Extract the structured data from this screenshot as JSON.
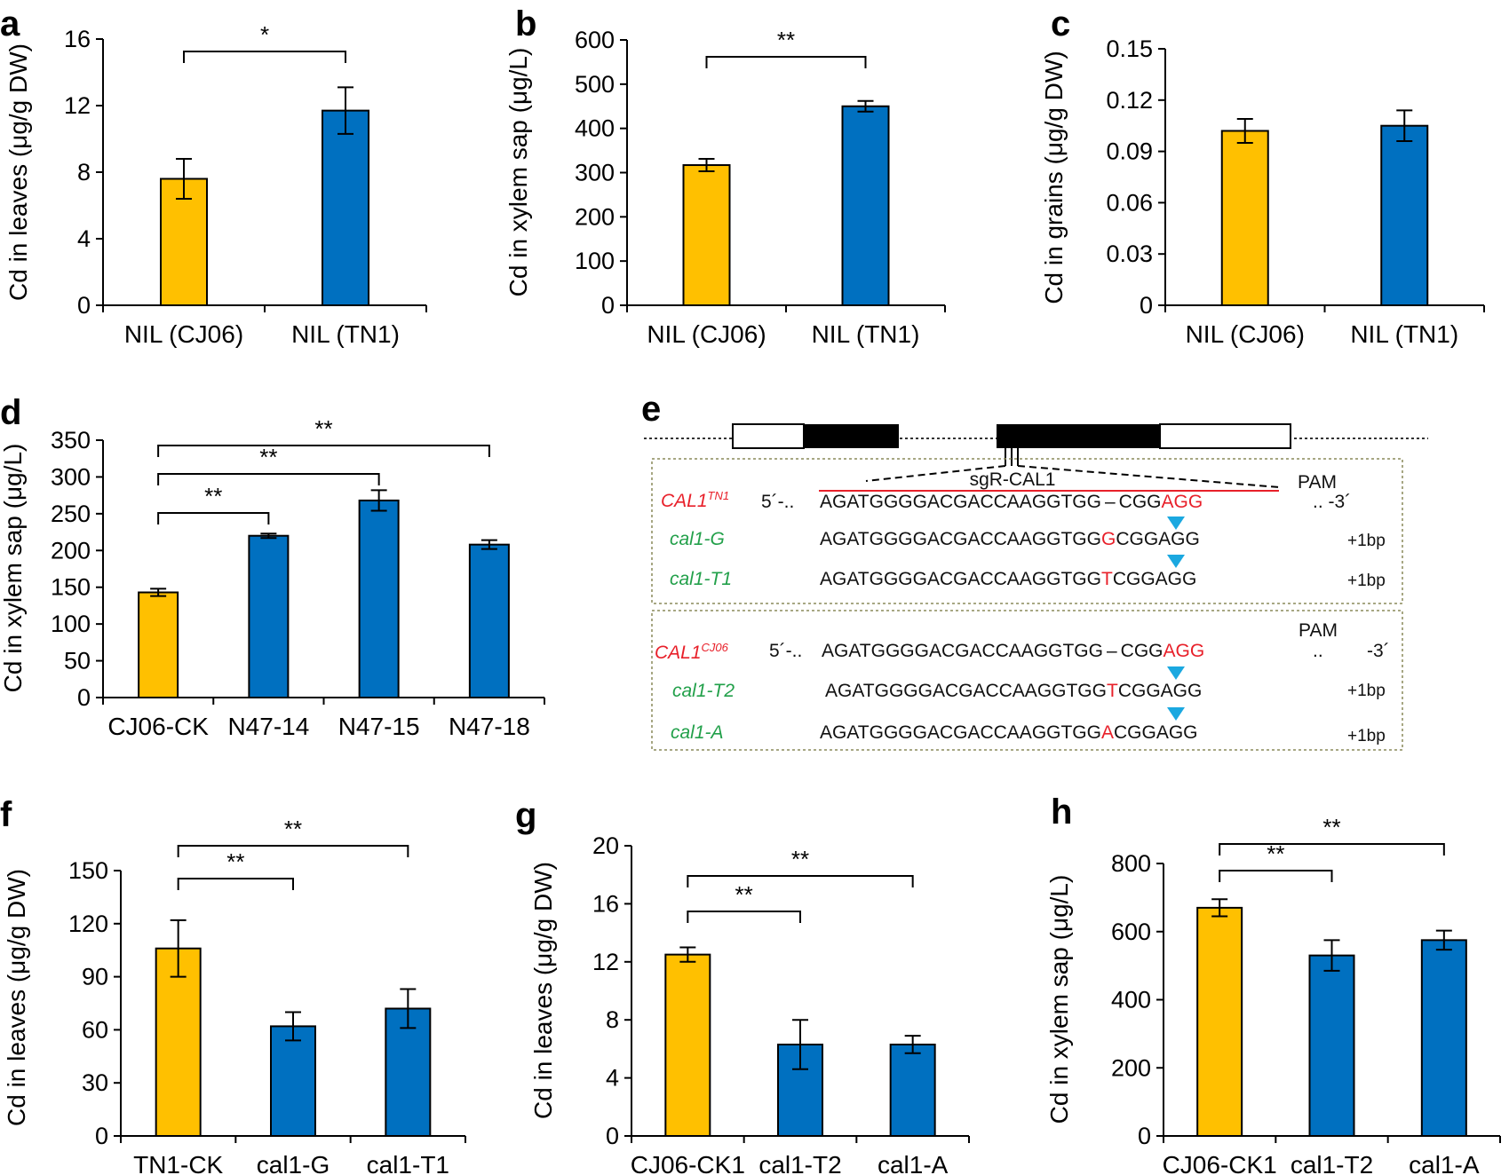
{
  "colors": {
    "yellow": "#ffc000",
    "blue": "#0070c0",
    "red": "#e8202a",
    "green": "#22a04a",
    "cyan": "#1ba8e0"
  },
  "chart_data": [
    {
      "id": "a",
      "panel": "a",
      "type": "bar",
      "categories": [
        "NIL (CJ06)",
        "NIL (TN1)"
      ],
      "values": [
        7.6,
        11.7
      ],
      "errors": [
        1.2,
        1.4
      ],
      "colors": [
        "yellow",
        "blue"
      ],
      "ylabel": "Cd in leaves (μg/g DW)",
      "ylim": [
        0,
        16
      ],
      "yticks": [
        "0",
        "4",
        "8",
        "12",
        "16"
      ],
      "significance": [
        {
          "from": 0,
          "to": 1,
          "label": "*"
        }
      ]
    },
    {
      "id": "b",
      "panel": "b",
      "type": "bar",
      "categories": [
        "NIL (CJ06)",
        "NIL (TN1)"
      ],
      "values": [
        317,
        450
      ],
      "errors": [
        14,
        12
      ],
      "colors": [
        "yellow",
        "blue"
      ],
      "ylabel": "Cd in xylem sap (μg/L)",
      "ylim": [
        0,
        600
      ],
      "yticks": [
        "0",
        "100",
        "200",
        "300",
        "400",
        "500",
        "600"
      ],
      "significance": [
        {
          "from": 0,
          "to": 1,
          "label": "**"
        }
      ]
    },
    {
      "id": "c",
      "panel": "c",
      "type": "bar",
      "categories": [
        "NIL (CJ06)",
        "NIL (TN1)"
      ],
      "values": [
        0.102,
        0.105
      ],
      "errors": [
        0.007,
        0.009
      ],
      "colors": [
        "yellow",
        "blue"
      ],
      "ylabel": "Cd in grains (μg/g DW)",
      "ylim": [
        0,
        0.15
      ],
      "yticks": [
        "0",
        "0.03",
        "0.06",
        "0.09",
        "0.12",
        "0.15"
      ],
      "significance": []
    },
    {
      "id": "d",
      "panel": "d",
      "type": "bar",
      "categories": [
        "CJ06-CK",
        "N47-14",
        "N47-15",
        "N47-18"
      ],
      "values": [
        143,
        220,
        268,
        208
      ],
      "errors": [
        5,
        3,
        14,
        6
      ],
      "colors": [
        "yellow",
        "blue",
        "blue",
        "blue"
      ],
      "ylabel": "Cd in xylem sap (μg/L)",
      "ylim": [
        0,
        350
      ],
      "yticks": [
        "0",
        "50",
        "100",
        "150",
        "200",
        "250",
        "300",
        "350"
      ],
      "significance": [
        {
          "from": 0,
          "to": 1,
          "label": "**"
        },
        {
          "from": 0,
          "to": 2,
          "label": "**"
        },
        {
          "from": 0,
          "to": 3,
          "label": "**"
        }
      ]
    },
    {
      "id": "f",
      "panel": "f",
      "type": "bar",
      "categories": [
        "TN1-CK",
        "cal1-G",
        "cal1-T1"
      ],
      "values": [
        106,
        62,
        72
      ],
      "errors": [
        16,
        8,
        11
      ],
      "colors": [
        "yellow",
        "blue",
        "blue"
      ],
      "ylabel": "Cd in leaves (μg/g DW)",
      "ylim": [
        0,
        150
      ],
      "yticks": [
        "0",
        "30",
        "60",
        "90",
        "120",
        "150"
      ],
      "significance": [
        {
          "from": 0,
          "to": 1,
          "label": "**"
        },
        {
          "from": 0,
          "to": 2,
          "label": "**"
        }
      ]
    },
    {
      "id": "g",
      "panel": "g",
      "type": "bar",
      "categories": [
        "CJ06-CK1",
        "cal1-T2",
        "cal1-A"
      ],
      "values": [
        12.5,
        6.3,
        6.3
      ],
      "errors": [
        0.5,
        1.7,
        0.6
      ],
      "colors": [
        "yellow",
        "blue",
        "blue"
      ],
      "ylabel": "Cd in leaves (μg/g DW)",
      "ylim": [
        0,
        20
      ],
      "yticks": [
        "0",
        "4",
        "8",
        "12",
        "16",
        "20"
      ],
      "significance": [
        {
          "from": 0,
          "to": 1,
          "label": "**"
        },
        {
          "from": 0,
          "to": 2,
          "label": "**"
        }
      ]
    },
    {
      "id": "h",
      "panel": "h",
      "type": "bar",
      "categories": [
        "CJ06-CK1",
        "cal1-T2",
        "cal1-A"
      ],
      "values": [
        670,
        530,
        575
      ],
      "errors": [
        25,
        45,
        28
      ],
      "colors": [
        "yellow",
        "blue",
        "blue"
      ],
      "ylabel": "Cd in xylem sap (μg/L)",
      "ylim": [
        0,
        800
      ],
      "yticks": [
        "0",
        "200",
        "400",
        "600",
        "800"
      ],
      "significance": [
        {
          "from": 0,
          "to": 1,
          "label": "**"
        },
        {
          "from": 0,
          "to": 2,
          "label": "**"
        }
      ]
    }
  ],
  "diagram_e": {
    "panel": "e",
    "sg_label": "sgR-CAL1",
    "pam": "PAM",
    "prime5": "5´-..",
    "prime3_top": ".. -3´",
    "prime3_bottom": "-3´",
    "dots": "..",
    "top_name": "CAL1",
    "top_sup": "TN1",
    "bottom_name": "CAL1",
    "bottom_sup": "CJ06",
    "ref_seq": "AGATGGGGACGACCAAGGTGG",
    "gap": "–",
    "cgg": "CGG",
    "agg": "AGG",
    "seq_prefix": "AGATGGGGACGACCAAGGTGG",
    "seq_suffix": "CGGAGG",
    "plus1": "+1bp",
    "mutants_top": [
      {
        "name": "cal1-G",
        "ins": "G"
      },
      {
        "name": "cal1-T1",
        "ins": "T"
      }
    ],
    "mutants_bottom": [
      {
        "name": "cal1-T2",
        "ins": "T"
      },
      {
        "name": "cal1-A",
        "ins": "A"
      }
    ]
  }
}
